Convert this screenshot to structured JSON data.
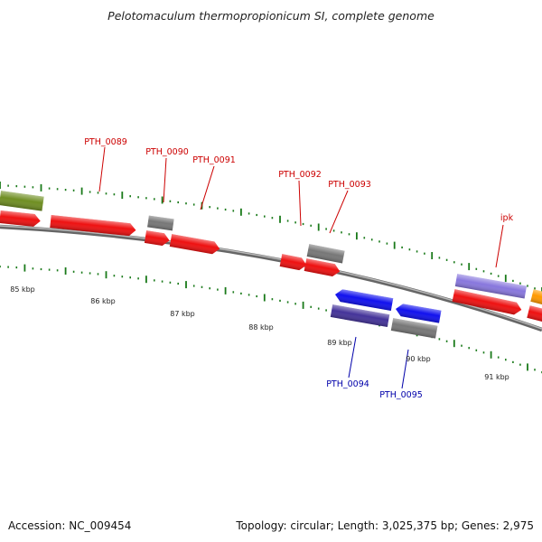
{
  "title": "Pelotomaculum thermopropionicum SI, complete genome",
  "footer": {
    "accession": "Accession: NC_009454",
    "summary": "Topology: circular; Length: 3,025,375 bp; Genes: 2,975"
  },
  "colors": {
    "forward_label": "#cc0000",
    "reverse_label": "#0000aa",
    "backbone": "#888888",
    "tick": "#1a7a1a",
    "gene_red": "#ee1111",
    "gene_gray": "#777777",
    "gene_olive": "#6f8e22",
    "gene_lavender": "#8877dd",
    "gene_orange": "#ff9900",
    "gene_blue": "#1111ee",
    "gene_indigo": "#443399"
  },
  "kbp_labels": [
    "85 kbp",
    "86 kbp",
    "87 kbp",
    "88 kbp",
    "89 kbp",
    "90 kbp",
    "91 kbp"
  ],
  "gene_labels": {
    "pth_0089": "PTH_0089",
    "pth_0090": "PTH_0090",
    "pth_0091": "PTH_0091",
    "pth_0092": "PTH_0092",
    "pth_0093": "PTH_0093",
    "ipk": "ipk",
    "pth_0094": "PTH_0094",
    "pth_0095": "PTH_0095"
  }
}
